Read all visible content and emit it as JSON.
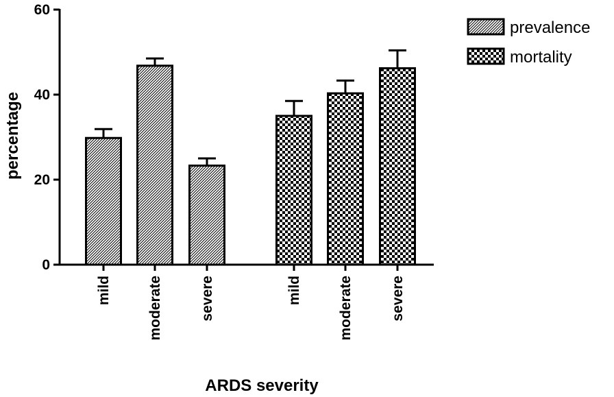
{
  "chart_data": {
    "type": "bar",
    "xlabel": "ARDS severity",
    "ylabel": "percentage",
    "ylim": [
      0,
      60
    ],
    "yticks": [
      0,
      20,
      40,
      60
    ],
    "legend_position": "top-right",
    "series": [
      {
        "name": "prevalence",
        "pattern": "hatched",
        "categories": [
          "mild",
          "moderate",
          "severe"
        ],
        "values": [
          29.8,
          46.8,
          23.3
        ],
        "errors": [
          2.1,
          1.7,
          1.7
        ]
      },
      {
        "name": "mortality",
        "pattern": "checkered",
        "categories": [
          "mild",
          "moderate",
          "severe"
        ],
        "values": [
          35.0,
          40.3,
          46.2
        ],
        "errors": [
          3.5,
          3.0,
          4.2
        ]
      }
    ]
  }
}
